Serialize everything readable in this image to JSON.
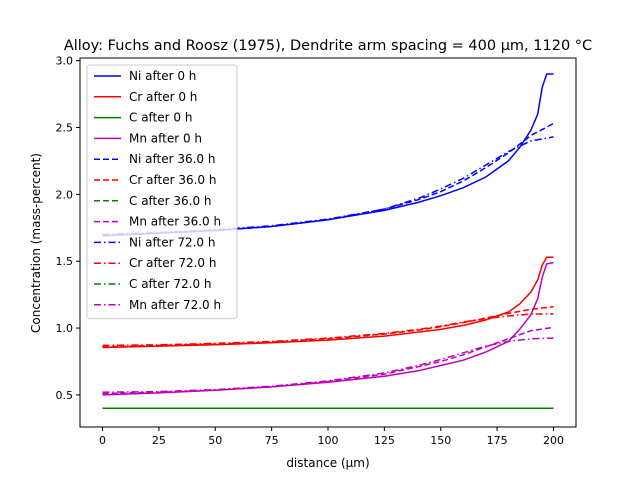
{
  "chart_data": {
    "type": "line",
    "title": "Alloy: Fuchs and Roosz (1975), Dendrite arm spacing = 400 µm, 1120 °C",
    "xlabel": "distance (µm)",
    "ylabel": "Concentration (mass-percent)",
    "xlim": [
      -10,
      210
    ],
    "ylim": [
      0.26,
      3.02
    ],
    "xticks": [
      0,
      25,
      50,
      75,
      100,
      125,
      150,
      175,
      200
    ],
    "xtick_labels": [
      "0",
      "25",
      "50",
      "75",
      "100",
      "125",
      "150",
      "175",
      "200"
    ],
    "yticks": [
      0.5,
      1.0,
      1.5,
      2.0,
      2.5,
      3.0
    ],
    "ytick_labels": [
      "0.5",
      "1.0",
      "1.5",
      "2.0",
      "2.5",
      "3.0"
    ],
    "grid": false,
    "legend_position": "top-left",
    "series": [
      {
        "name": "Ni after 0 h",
        "color": "#0000ff",
        "dash": "solid",
        "x": [
          0,
          25,
          50,
          75,
          100,
          125,
          140,
          150,
          160,
          170,
          180,
          185,
          190,
          193,
          195,
          197,
          200
        ],
        "y": [
          1.69,
          1.71,
          1.73,
          1.76,
          1.81,
          1.88,
          1.94,
          1.99,
          2.05,
          2.13,
          2.25,
          2.35,
          2.48,
          2.6,
          2.8,
          2.9,
          2.9
        ]
      },
      {
        "name": "Cr after 0 h",
        "color": "#ff0000",
        "dash": "solid",
        "x": [
          0,
          25,
          50,
          75,
          100,
          125,
          140,
          150,
          160,
          170,
          180,
          185,
          190,
          193,
          195,
          197,
          200
        ],
        "y": [
          0.855,
          0.865,
          0.875,
          0.89,
          0.91,
          0.94,
          0.97,
          0.99,
          1.02,
          1.06,
          1.12,
          1.18,
          1.27,
          1.36,
          1.47,
          1.53,
          1.53
        ]
      },
      {
        "name": "C after 0 h",
        "color": "#008000",
        "dash": "solid",
        "x": [
          0,
          50,
          100,
          150,
          200
        ],
        "y": [
          0.4,
          0.4,
          0.4,
          0.4,
          0.4
        ]
      },
      {
        "name": "Mn after 0 h",
        "color": "#bf00bf",
        "dash": "solid",
        "x": [
          0,
          25,
          50,
          75,
          100,
          125,
          140,
          150,
          160,
          170,
          180,
          185,
          190,
          193,
          195,
          197,
          200
        ],
        "y": [
          0.5,
          0.515,
          0.535,
          0.56,
          0.595,
          0.64,
          0.68,
          0.72,
          0.76,
          0.82,
          0.9,
          0.99,
          1.1,
          1.22,
          1.38,
          1.48,
          1.49
        ]
      },
      {
        "name": "Ni after 36.0 h",
        "color": "#0000ff",
        "dash": "dashed",
        "x": [
          0,
          25,
          50,
          75,
          100,
          125,
          140,
          150,
          160,
          170,
          180,
          190,
          200
        ],
        "y": [
          1.69,
          1.71,
          1.73,
          1.76,
          1.81,
          1.89,
          1.96,
          2.02,
          2.1,
          2.2,
          2.31,
          2.44,
          2.53
        ]
      },
      {
        "name": "Cr after 36.0 h",
        "color": "#ff0000",
        "dash": "dashed",
        "x": [
          0,
          25,
          50,
          75,
          100,
          125,
          140,
          150,
          160,
          170,
          180,
          190,
          200
        ],
        "y": [
          0.86,
          0.87,
          0.88,
          0.895,
          0.92,
          0.955,
          0.985,
          1.01,
          1.04,
          1.075,
          1.11,
          1.14,
          1.16
        ]
      },
      {
        "name": "C after 36.0 h",
        "color": "#008000",
        "dash": "dashed",
        "x": [
          0,
          50,
          100,
          150,
          200
        ],
        "y": [
          0.4,
          0.4,
          0.4,
          0.4,
          0.4
        ]
      },
      {
        "name": "Mn after 36.0 h",
        "color": "#bf00bf",
        "dash": "dashed",
        "x": [
          0,
          25,
          50,
          75,
          100,
          125,
          140,
          150,
          160,
          170,
          180,
          190,
          200
        ],
        "y": [
          0.51,
          0.52,
          0.535,
          0.56,
          0.6,
          0.655,
          0.71,
          0.75,
          0.8,
          0.86,
          0.92,
          0.98,
          1.005
        ]
      },
      {
        "name": "Ni after 72.0 h",
        "color": "#0000ff",
        "dash": "dashdot",
        "x": [
          0,
          25,
          50,
          75,
          100,
          125,
          140,
          150,
          160,
          170,
          180,
          190,
          200
        ],
        "y": [
          1.7,
          1.715,
          1.735,
          1.765,
          1.815,
          1.89,
          1.97,
          2.04,
          2.12,
          2.22,
          2.32,
          2.4,
          2.43
        ]
      },
      {
        "name": "Cr after 72.0 h",
        "color": "#ff0000",
        "dash": "dashdot",
        "x": [
          0,
          25,
          50,
          75,
          100,
          125,
          140,
          150,
          160,
          170,
          180,
          190,
          200
        ],
        "y": [
          0.87,
          0.875,
          0.885,
          0.9,
          0.925,
          0.96,
          0.99,
          1.015,
          1.045,
          1.07,
          1.09,
          1.105,
          1.105
        ]
      },
      {
        "name": "C after 72.0 h",
        "color": "#008000",
        "dash": "dashdot",
        "x": [
          0,
          50,
          100,
          150,
          200
        ],
        "y": [
          0.4,
          0.4,
          0.4,
          0.4,
          0.4
        ]
      },
      {
        "name": "Mn after 72.0 h",
        "color": "#bf00bf",
        "dash": "dashdot",
        "x": [
          0,
          25,
          50,
          75,
          100,
          125,
          140,
          150,
          160,
          170,
          180,
          190,
          200
        ],
        "y": [
          0.52,
          0.525,
          0.54,
          0.565,
          0.605,
          0.665,
          0.72,
          0.765,
          0.815,
          0.865,
          0.9,
          0.92,
          0.925
        ]
      }
    ]
  }
}
